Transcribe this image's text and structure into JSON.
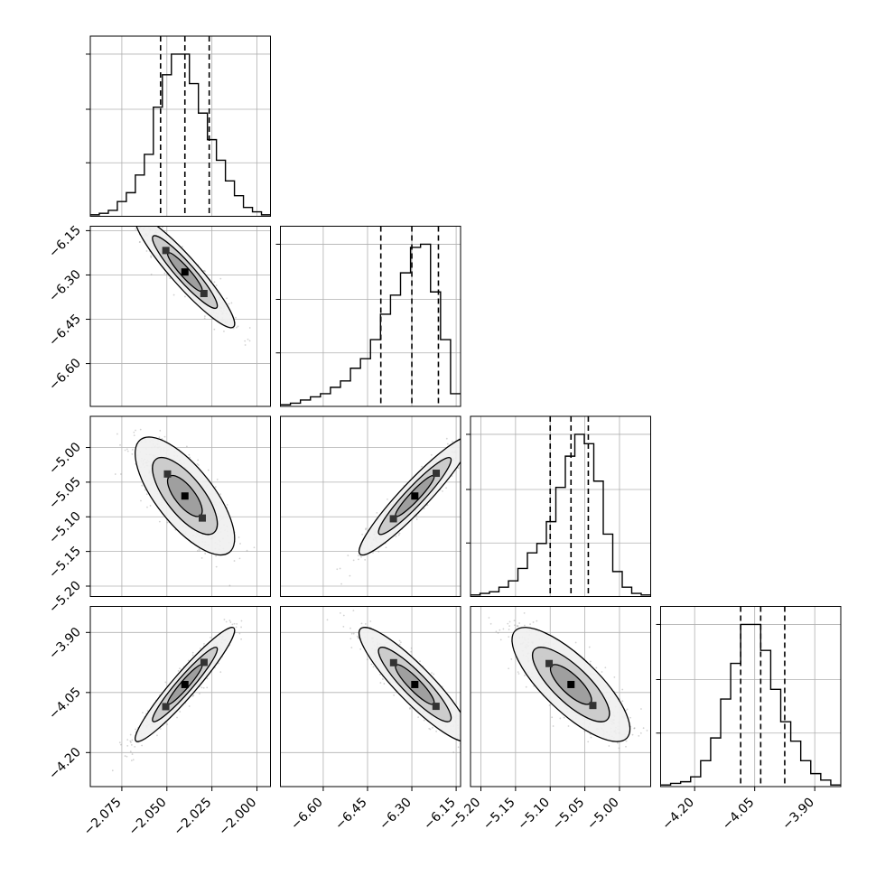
{
  "chart_data": {
    "type": "corner",
    "title": "",
    "grid": true,
    "colors": {
      "line": "#000000",
      "grid": "#b0b0b0",
      "sample": "#808080",
      "background": "#ffffff"
    },
    "quantiles": [
      0.16,
      0.5,
      0.84
    ],
    "params": [
      {
        "range": [
          -2.0925,
          -1.9925
        ],
        "ticks": [
          -2.075,
          -2.05,
          -2.025,
          -2.0
        ],
        "tick_labels": [
          "−2.075",
          "−2.050",
          "−2.025",
          "−2.000"
        ],
        "quantile_values": [
          -2.0535,
          -2.04,
          -2.0265
        ],
        "hist_counts": [
          0.5,
          1,
          2,
          5,
          8,
          14,
          21,
          37,
          48,
          55,
          55,
          45,
          35,
          26,
          19,
          12,
          7,
          3,
          1.5,
          0.5
        ]
      },
      {
        "range": [
          -6.745,
          -6.135
        ],
        "ticks": [
          -6.6,
          -6.45,
          -6.3,
          -6.15
        ],
        "tick_labels": [
          "−6.60",
          "−6.45",
          "−6.30",
          "−6.15"
        ],
        "quantile_values": [
          -6.405,
          -6.3,
          -6.21
        ],
        "hist_counts": [
          0.5,
          1,
          2,
          3,
          4,
          6,
          8,
          12,
          15,
          21,
          29,
          35,
          42,
          50,
          51,
          36,
          21,
          4
        ]
      },
      {
        "range": [
          -5.215,
          -4.955
        ],
        "ticks": [
          -5.2,
          -5.15,
          -5.1,
          -5.05,
          -5.0
        ],
        "tick_labels": [
          "−5.20",
          "−5.15",
          "−5.10",
          "−5.05",
          "−5.00"
        ],
        "quantile_values": [
          -5.1,
          -5.07,
          -5.045
        ],
        "hist_counts": [
          0.5,
          1,
          1.5,
          3,
          5,
          9,
          14,
          17,
          24,
          35,
          45,
          52,
          49,
          37,
          20,
          8,
          3,
          1,
          0.5
        ]
      },
      {
        "range": [
          -4.285,
          -3.835
        ],
        "ticks": [
          -4.2,
          -4.05,
          -3.9
        ],
        "tick_labels": [
          "−4.20",
          "−4.05",
          "−3.90"
        ],
        "quantile_values": [
          -4.085,
          -4.035,
          -3.975
        ],
        "hist_counts": [
          0.5,
          1,
          1.5,
          3,
          8,
          15,
          27,
          38,
          50,
          50,
          42,
          30,
          20,
          14,
          8,
          4,
          2,
          0.5
        ]
      }
    ],
    "pairs": [
      {
        "row": 1,
        "col": 0,
        "center": [
          -2.04,
          -6.29
        ],
        "sigma": [
          0.012,
          0.082
        ],
        "corr": -0.93
      },
      {
        "row": 2,
        "col": 0,
        "center": [
          -2.04,
          -5.07
        ],
        "sigma": [
          0.012,
          0.037
        ],
        "corr": -0.72
      },
      {
        "row": 2,
        "col": 1,
        "center": [
          -6.29,
          -5.07
        ],
        "sigma": [
          0.082,
          0.037
        ],
        "corr": 0.94
      },
      {
        "row": 3,
        "col": 0,
        "center": [
          -2.04,
          -4.03
        ],
        "sigma": [
          0.012,
          0.062
        ],
        "corr": 0.95
      },
      {
        "row": 3,
        "col": 1,
        "center": [
          -6.29,
          -4.03
        ],
        "sigma": [
          0.082,
          0.062
        ],
        "corr": -0.9
      },
      {
        "row": 3,
        "col": 2,
        "center": [
          -5.07,
          -4.03
        ],
        "sigma": [
          0.037,
          0.062
        ],
        "corr": -0.78
      }
    ]
  }
}
